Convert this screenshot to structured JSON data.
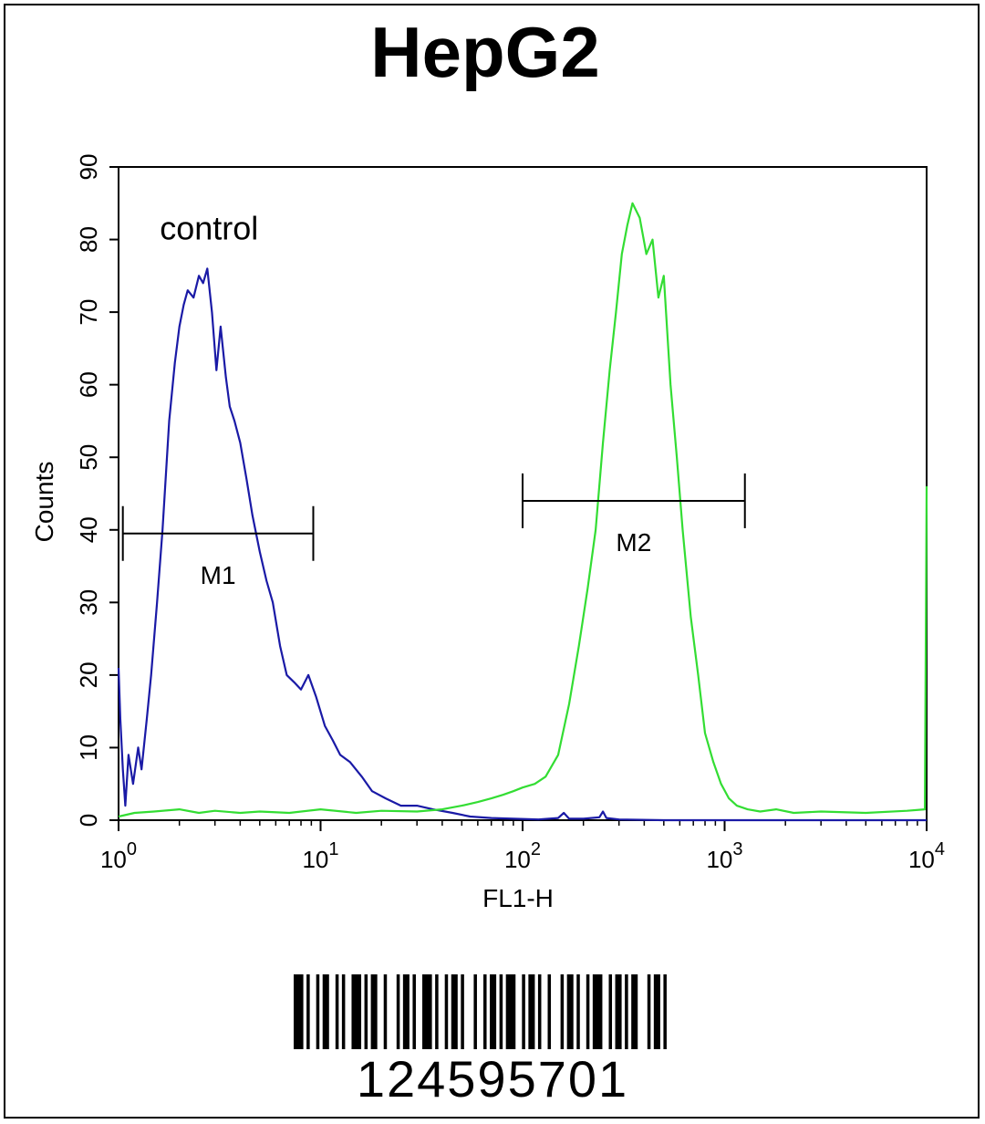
{
  "chart_data": {
    "type": "line",
    "title": "HepG2",
    "xlabel": "FL1-H",
    "ylabel": "Counts",
    "x_scale": "log",
    "xlim": [
      1,
      10000
    ],
    "ylim": [
      0,
      90
    ],
    "x_ticks": [
      {
        "base": "10",
        "exp": "0",
        "value": 1
      },
      {
        "base": "10",
        "exp": "1",
        "value": 10
      },
      {
        "base": "10",
        "exp": "2",
        "value": 100
      },
      {
        "base": "10",
        "exp": "3",
        "value": 1000
      },
      {
        "base": "10",
        "exp": "4",
        "value": 10000
      }
    ],
    "y_ticks": [
      "0",
      "10",
      "20",
      "30",
      "40",
      "50",
      "60",
      "70",
      "80",
      "90"
    ],
    "grid": false,
    "annotations": [
      {
        "text": "control",
        "x": 1.6,
        "y": 80
      }
    ],
    "markers": [
      {
        "name": "M1",
        "x_start": 1.05,
        "x_end": 9.2,
        "y": 39.5
      },
      {
        "name": "M2",
        "x_start": 100,
        "x_end": 1260,
        "y": 44
      }
    ],
    "series": [
      {
        "color": "#1a1aa6",
        "x": [
          1.0,
          1.02,
          1.05,
          1.08,
          1.12,
          1.18,
          1.25,
          1.3,
          1.38,
          1.45,
          1.55,
          1.65,
          1.78,
          1.9,
          2.0,
          2.1,
          2.2,
          2.35,
          2.5,
          2.62,
          2.75,
          2.9,
          3.05,
          3.2,
          3.4,
          3.55,
          3.75,
          4.0,
          4.3,
          4.6,
          5.0,
          5.4,
          5.8,
          6.3,
          6.8,
          7.4,
          8.0,
          8.7,
          9.5,
          10.5,
          11.5,
          12.5,
          14,
          16,
          18,
          21,
          25,
          30,
          36,
          45,
          55,
          70,
          90,
          120,
          150,
          160,
          170,
          200,
          240,
          250,
          260,
          300,
          500,
          1000,
          10000
        ],
        "y": [
          21,
          14,
          7,
          2,
          9,
          5,
          10,
          7,
          14,
          20,
          30,
          40,
          55,
          63,
          68,
          71,
          73,
          72,
          75,
          74,
          76,
          70,
          62,
          68,
          61,
          57,
          55,
          52,
          47,
          42,
          37,
          33,
          30,
          24,
          20,
          19,
          18,
          20,
          17,
          13,
          11,
          9,
          8,
          6,
          4,
          3,
          2,
          2,
          1.5,
          1,
          0.5,
          0.3,
          0.2,
          0.1,
          0.3,
          1,
          0.2,
          0.2,
          0.4,
          1.2,
          0.3,
          0.1,
          0,
          0,
          0
        ]
      },
      {
        "color": "#33dd33",
        "x": [
          1.0,
          1.2,
          1.5,
          2.0,
          2.5,
          3.0,
          4.0,
          5.0,
          7.0,
          10,
          15,
          20,
          30,
          40,
          50,
          60,
          70,
          80,
          90,
          100,
          115,
          130,
          150,
          170,
          190,
          210,
          230,
          250,
          270,
          290,
          310,
          330,
          350,
          380,
          410,
          440,
          470,
          500,
          540,
          580,
          620,
          680,
          740,
          800,
          880,
          960,
          1050,
          1150,
          1300,
          1500,
          1800,
          2200,
          3000,
          5000,
          8000,
          9800,
          10000
        ],
        "y": [
          0.5,
          1,
          1.2,
          1.5,
          1,
          1.3,
          1,
          1.2,
          1,
          1.5,
          1,
          1.3,
          1.2,
          1.5,
          2,
          2.5,
          3,
          3.5,
          4,
          4.5,
          5,
          6,
          9,
          16,
          24,
          32,
          40,
          52,
          62,
          70,
          78,
          82,
          85,
          83,
          78,
          80,
          72,
          75,
          60,
          50,
          40,
          28,
          20,
          12,
          8,
          5,
          3,
          2,
          1.5,
          1.2,
          1.5,
          1,
          1.2,
          1,
          1.3,
          1.5,
          46
        ]
      }
    ]
  },
  "barcode": {
    "number": "124595701",
    "bar_pattern": "3,1,1,2,1,1,2,2,1,1,1,2,3,1,1,1,2,2,1,3,1,1,2,1,1,2,3,1,1,2,1,1,2,1,1,3,1,2,1,1,2,1,1,1,3,2,1,1,2,1,1,2,1,3,1,1,2,1,1,2,1,1,3,2,1,1,2,1,1,1,2,3,1,1,2,1,1,2"
  }
}
